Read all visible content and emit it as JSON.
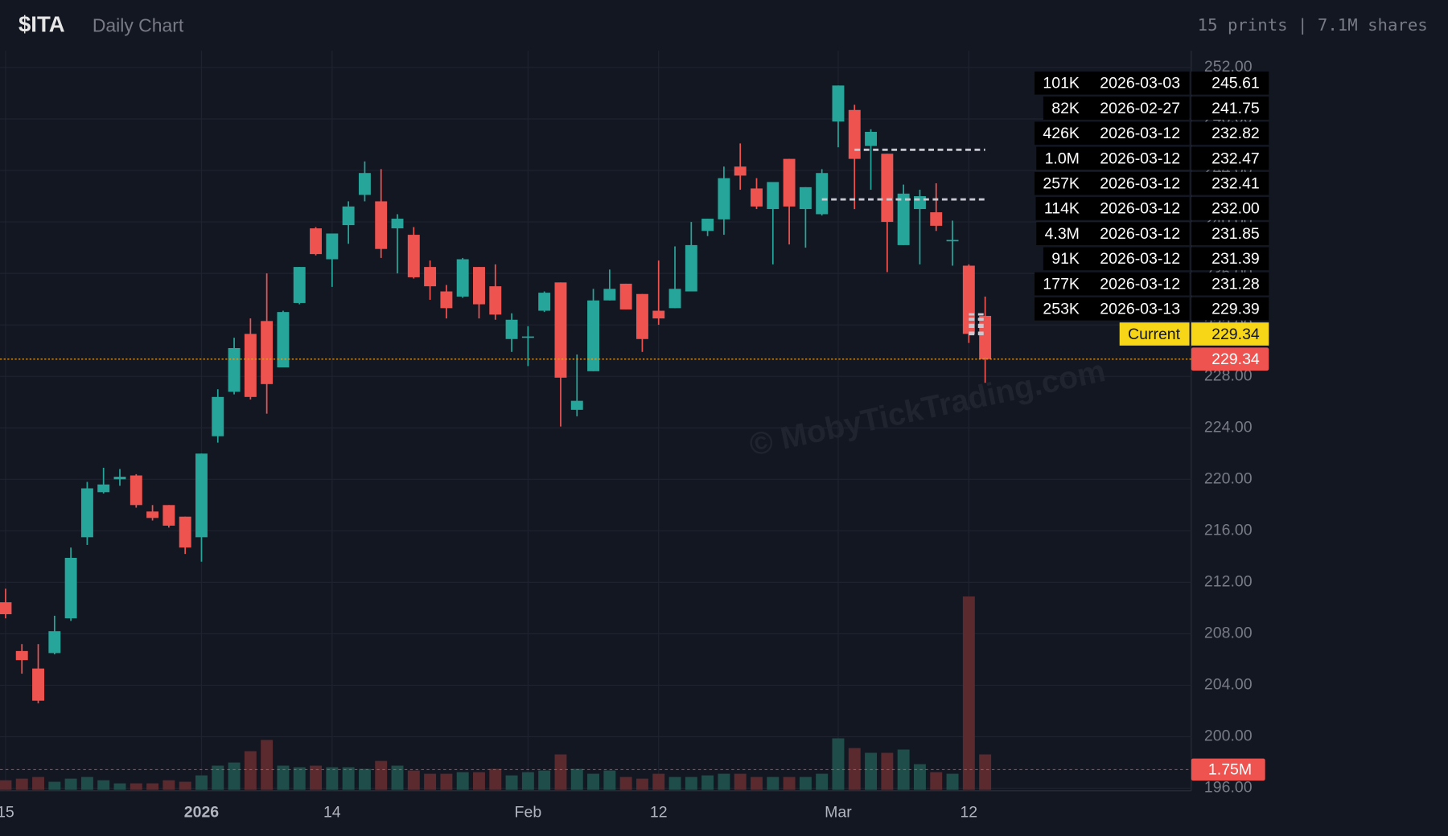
{
  "chart_data": {
    "type": "candlestick",
    "title": "$ITA",
    "subtitle": "Daily Chart",
    "info": "15 prints | 7.1M shares",
    "watermark": "© MobyTickTrading.com",
    "up_color": "#26a69a",
    "down_color": "#ef5350",
    "volume_up_color": "#1f4e4a",
    "volume_down_color": "#5a2a2f",
    "grid": true,
    "x": [
      "2025-12-15",
      "2025-12-16",
      "2025-12-17",
      "2025-12-18",
      "2025-12-19",
      "2025-12-22",
      "2025-12-23",
      "2025-12-24",
      "2025-12-26",
      "2025-12-29",
      "2025-12-30",
      "2025-12-31",
      "2026-01-02",
      "2026-01-05",
      "2026-01-06",
      "2026-01-07",
      "2026-01-08",
      "2026-01-09",
      "2026-01-12",
      "2026-01-13",
      "2026-01-14",
      "2026-01-15",
      "2026-01-16",
      "2026-01-20",
      "2026-01-21",
      "2026-01-22",
      "2026-01-23",
      "2026-01-26",
      "2026-01-27",
      "2026-01-28",
      "2026-01-29",
      "2026-01-30",
      "2026-02-02",
      "2026-02-03",
      "2026-02-04",
      "2026-02-05",
      "2026-02-06",
      "2026-02-09",
      "2026-02-10",
      "2026-02-11",
      "2026-02-12",
      "2026-02-13",
      "2026-02-17",
      "2026-02-18",
      "2026-02-19",
      "2026-02-20",
      "2026-02-23",
      "2026-02-24",
      "2026-02-25",
      "2026-02-26",
      "2026-02-27",
      "2026-03-02",
      "2026-03-03",
      "2026-03-04",
      "2026-03-05",
      "2026-03-06",
      "2026-03-09",
      "2026-03-10",
      "2026-03-11",
      "2026-03-12",
      "2026-03-13"
    ],
    "open": [
      210.45,
      206.66,
      205.3,
      206.5,
      209.2,
      215.5,
      219.0,
      220.0,
      220.3,
      217.5,
      218.0,
      217.1,
      215.5,
      223.35,
      226.8,
      231.3,
      232.3,
      228.7,
      233.7,
      239.5,
      237.1,
      239.75,
      242.1,
      241.6,
      239.5,
      239.0,
      236.5,
      234.6,
      234.2,
      236.5,
      235.0,
      230.9,
      231.0,
      233.1,
      235.3,
      225.4,
      228.4,
      233.9,
      235.2,
      234.4,
      233.1,
      233.3,
      234.6,
      239.3,
      240.2,
      244.3,
      242.6,
      241.0,
      244.9,
      241.0,
      240.6,
      247.8,
      248.7,
      245.9,
      245.3,
      238.2,
      241.0,
      240.75,
      238.55,
      236.6,
      232.7
    ],
    "high": [
      211.5,
      207.2,
      207.2,
      209.4,
      214.7,
      219.8,
      220.9,
      220.8,
      220.4,
      218.0,
      218.0,
      217.1,
      222.0,
      227.0,
      231.0,
      232.5,
      236.0,
      233.1,
      236.5,
      239.6,
      239.1,
      241.6,
      244.7,
      244.1,
      240.6,
      239.6,
      237.0,
      235.1,
      237.2,
      236.5,
      236.7,
      232.9,
      231.9,
      234.6,
      235.3,
      229.7,
      234.8,
      236.3,
      235.2,
      234.4,
      237.0,
      238.1,
      240.0,
      240.25,
      244.3,
      246.1,
      243.4,
      243.1,
      244.9,
      242.7,
      244.1,
      250.6,
      249.1,
      247.2,
      245.3,
      242.9,
      242.5,
      243.0,
      240.1,
      236.7,
      234.2
    ],
    "low": [
      209.2,
      204.9,
      202.6,
      206.4,
      209.0,
      214.9,
      218.9,
      219.5,
      217.8,
      216.8,
      216.25,
      214.2,
      213.6,
      222.85,
      226.6,
      226.2,
      225.1,
      228.7,
      233.6,
      237.4,
      234.95,
      238.3,
      241.6,
      237.2,
      236.0,
      235.6,
      233.95,
      232.5,
      234.1,
      232.5,
      232.4,
      229.9,
      228.8,
      233.0,
      224.1,
      224.9,
      228.4,
      233.9,
      233.2,
      229.9,
      232.0,
      233.3,
      234.6,
      238.9,
      239.0,
      242.5,
      241.0,
      236.7,
      238.25,
      238.0,
      240.5,
      245.8,
      241.0,
      242.5,
      236.1,
      238.2,
      236.7,
      239.3,
      236.6,
      230.6,
      227.5
    ],
    "close": [
      209.52,
      205.95,
      202.8,
      208.2,
      213.9,
      219.3,
      219.6,
      220.2,
      218.0,
      217.0,
      216.4,
      214.7,
      222.0,
      226.4,
      230.2,
      226.4,
      227.4,
      233.0,
      236.5,
      237.5,
      239.1,
      241.2,
      243.8,
      237.9,
      240.25,
      235.7,
      235.0,
      233.3,
      237.1,
      233.6,
      232.8,
      232.4,
      231.1,
      234.5,
      227.9,
      226.1,
      233.9,
      234.8,
      233.2,
      230.9,
      232.5,
      234.8,
      238.2,
      240.25,
      243.4,
      243.6,
      241.2,
      243.1,
      241.2,
      242.7,
      243.8,
      250.6,
      244.9,
      247.0,
      240.0,
      242.2,
      242.0,
      239.7,
      238.6,
      231.3,
      229.34
    ],
    "volume": [
      830000,
      970000,
      1110000,
      700000,
      970000,
      1110000,
      830000,
      560000,
      560000,
      560000,
      830000,
      700000,
      1250000,
      2090000,
      2360000,
      3340000,
      4310000,
      2090000,
      1950000,
      2090000,
      1950000,
      1950000,
      1810000,
      2500000,
      2090000,
      1670000,
      1390000,
      1390000,
      1530000,
      1530000,
      1810000,
      1250000,
      1530000,
      1670000,
      3060000,
      1810000,
      1390000,
      1670000,
      1110000,
      970000,
      1390000,
      1110000,
      1110000,
      1250000,
      1390000,
      1390000,
      1110000,
      1110000,
      1110000,
      1110000,
      1390000,
      4450000,
      3610000,
      3200000,
      3200000,
      3480000,
      2220000,
      1530000,
      1390000,
      16700000,
      3060000
    ],
    "ylim": [
      195.8,
      253.3
    ],
    "yticks": [
      {
        "value": 196,
        "label": "196.00"
      },
      {
        "value": 200,
        "label": "200.00"
      },
      {
        "value": 204,
        "label": "204.00"
      },
      {
        "value": 208,
        "label": "208.00"
      },
      {
        "value": 212,
        "label": "212.00"
      },
      {
        "value": 216,
        "label": "216.00"
      },
      {
        "value": 220,
        "label": "220.00"
      },
      {
        "value": 224,
        "label": "224.00"
      },
      {
        "value": 228,
        "label": "228.00"
      },
      {
        "value": 232,
        "label": "232.00"
      },
      {
        "value": 236,
        "label": "236.00"
      },
      {
        "value": 240,
        "label": "240.00"
      },
      {
        "value": 244,
        "label": "244.00"
      },
      {
        "value": 248,
        "label": "248.00"
      },
      {
        "value": 252,
        "label": "252.00"
      }
    ],
    "volume_ylim": [
      0,
      20000000
    ],
    "volume_avg": {
      "value": 1750000,
      "label": "1.75M"
    },
    "xticks": [
      {
        "value": "2025-12-15",
        "label": "15"
      },
      {
        "value": "2026-01-02",
        "label": "2026"
      },
      {
        "value": "2026-01-14",
        "label": "14"
      },
      {
        "value": "2026-02-02",
        "label": "Feb"
      },
      {
        "value": "2026-02-12",
        "label": "12"
      },
      {
        "value": "2026-03-02",
        "label": "Mar"
      },
      {
        "value": "2026-03-12",
        "label": "12"
      }
    ],
    "prints": [
      {
        "size": "101K",
        "date": "2026-03-03",
        "price": 245.61,
        "price_label": "245.61"
      },
      {
        "size": "82K",
        "date": "2026-02-27",
        "price": 241.75,
        "price_label": "241.75"
      },
      {
        "size": "426K",
        "date": "2026-03-12",
        "price": 232.82,
        "price_label": "232.82"
      },
      {
        "size": "1.0M",
        "date": "2026-03-12",
        "price": 232.47,
        "price_label": "232.47"
      },
      {
        "size": "257K",
        "date": "2026-03-12",
        "price": 232.41,
        "price_label": "232.41"
      },
      {
        "size": "114K",
        "date": "2026-03-12",
        "price": 232.0,
        "price_label": "232.00"
      },
      {
        "size": "4.3M",
        "date": "2026-03-12",
        "price": 231.85,
        "price_label": "231.85"
      },
      {
        "size": "91K",
        "date": "2026-03-12",
        "price": 231.39,
        "price_label": "231.39"
      },
      {
        "size": "177K",
        "date": "2026-03-12",
        "price": 231.28,
        "price_label": "231.28"
      },
      {
        "size": "253K",
        "date": "2026-03-13",
        "price": 229.39,
        "price_label": "229.39"
      }
    ],
    "current": {
      "label": "Current",
      "value": 229.34,
      "value_label": "229.34",
      "color": "#f7d617",
      "line_color": "#f0a020"
    }
  }
}
